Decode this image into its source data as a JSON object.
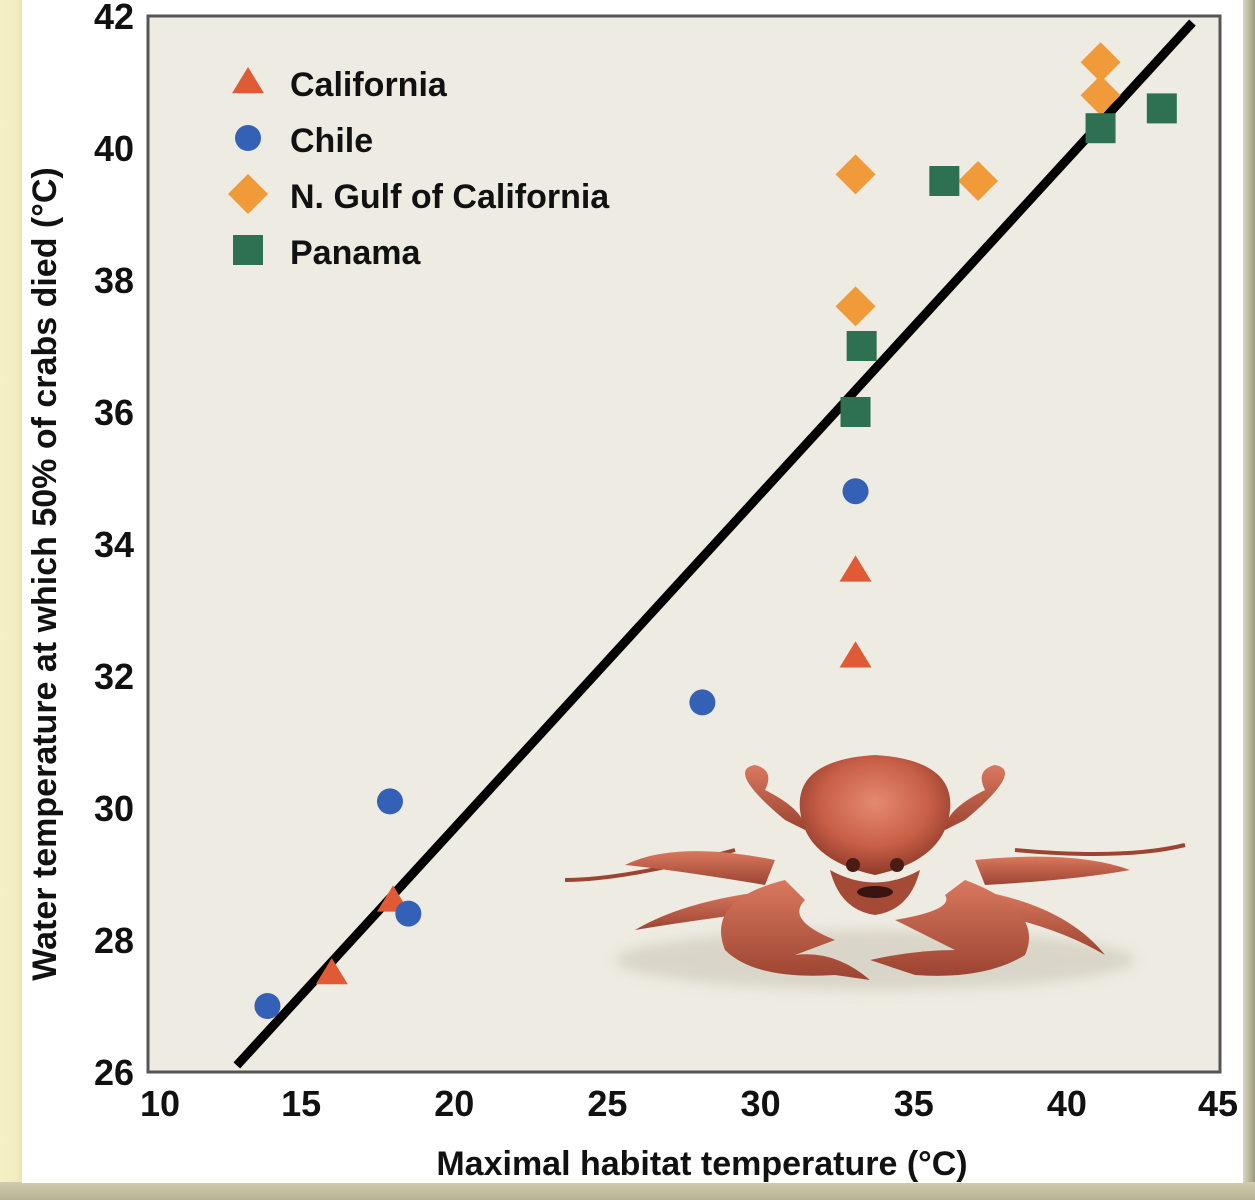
{
  "chart_data": {
    "type": "scatter",
    "title": "",
    "xlabel": "Maximal habitat temperature (°C)",
    "ylabel": "Water temperature at which 50% of crabs died (°C)",
    "xlim": [
      10,
      45
    ],
    "ylim": [
      26,
      42
    ],
    "xticks": [
      10,
      15,
      20,
      25,
      30,
      35,
      40,
      45
    ],
    "yticks": [
      26,
      28,
      30,
      32,
      34,
      36,
      38,
      40,
      42
    ],
    "grid": false,
    "legend_position": "top-left",
    "series": [
      {
        "name": "California",
        "marker": "triangle",
        "color": "#e05a36",
        "points": [
          [
            33.1,
            33.6
          ],
          [
            33.1,
            32.3
          ],
          [
            18.0,
            28.6
          ],
          [
            16.0,
            27.5
          ]
        ]
      },
      {
        "name": "Chile",
        "marker": "circle",
        "color": "#3461b5",
        "points": [
          [
            33.1,
            34.8
          ],
          [
            28.1,
            31.6
          ],
          [
            17.9,
            30.1
          ],
          [
            18.5,
            28.4
          ],
          [
            13.9,
            27.0
          ]
        ]
      },
      {
        "name": "N. Gulf of California",
        "marker": "diamond",
        "color": "#f09a3a",
        "points": [
          [
            41.1,
            41.3
          ],
          [
            41.1,
            40.8
          ],
          [
            33.1,
            39.6
          ],
          [
            37.1,
            39.5
          ],
          [
            33.1,
            37.6
          ]
        ]
      },
      {
        "name": "Panama",
        "marker": "square",
        "color": "#2e7150",
        "points": [
          [
            41.1,
            40.3
          ],
          [
            43.1,
            40.6
          ],
          [
            36.0,
            39.5
          ],
          [
            33.3,
            37.0
          ],
          [
            33.1,
            36.0
          ]
        ]
      }
    ],
    "trend_line": {
      "color": "#000000",
      "from": [
        12.9,
        26.1
      ],
      "to": [
        44.1,
        41.9
      ]
    },
    "annotations": [
      {
        "type": "illustration",
        "subject": "crab-illustration",
        "description": "Red crab drawing in lower-right of plot"
      }
    ]
  },
  "colors": {
    "plot_background": "#eeebe2",
    "plot_border": "#555555"
  }
}
